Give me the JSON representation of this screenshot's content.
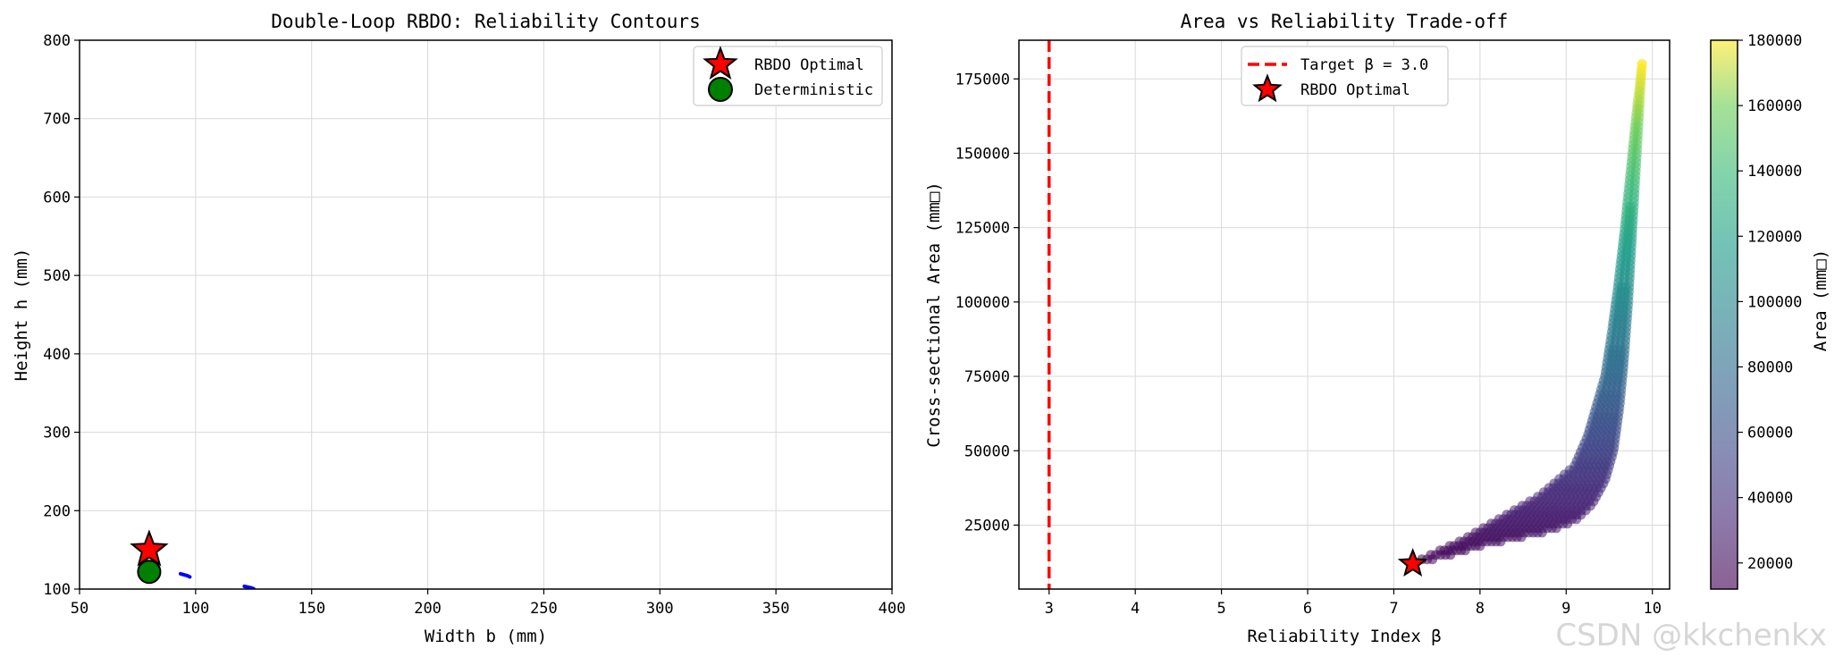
{
  "watermark": "CSDN @kkchenkx",
  "chart_data": [
    {
      "type": "scatter",
      "title": "Double-Loop RBDO: Reliability Contours",
      "xlabel": "Width b (mm)",
      "ylabel": "Height h (mm)",
      "xlim": [
        50,
        400
      ],
      "ylim": [
        100,
        800
      ],
      "xticks": [
        50,
        100,
        150,
        200,
        250,
        300,
        350,
        400
      ],
      "yticks": [
        100,
        200,
        300,
        400,
        500,
        600,
        700,
        800
      ],
      "grid": true,
      "legend_position": "upper right",
      "legend": [
        "RBDO Optimal",
        "Deterministic"
      ],
      "points": [
        {
          "name": "RBDO Optimal",
          "x": 80,
          "y": 150,
          "marker": "star",
          "color": "#ff0000"
        },
        {
          "name": "Deterministic",
          "x": 80,
          "y": 122,
          "marker": "circle",
          "color": "#008000"
        }
      ],
      "contour_fragments": [
        {
          "color": "#0000ff",
          "points": [
            [
              93.5,
              119.5
            ],
            [
              96.5,
              117
            ],
            [
              97.5,
              115.5
            ]
          ]
        },
        {
          "color": "#0000ff",
          "points": [
            [
              121,
              103.5
            ],
            [
              124,
              101.5
            ],
            [
              125,
              100.5
            ]
          ]
        }
      ]
    },
    {
      "type": "scatter",
      "title": "Area vs Reliability Trade-off",
      "xlabel": "Reliability Index β",
      "ylabel": "Cross-sectional Area (mm□)",
      "xlim": [
        2.65,
        10.2
      ],
      "ylim": [
        3500,
        188000
      ],
      "xticks": [
        3,
        4,
        5,
        6,
        7,
        8,
        9,
        10
      ],
      "yticks": [
        25000,
        50000,
        75000,
        100000,
        125000,
        150000,
        175000
      ],
      "grid": true,
      "legend_position": "upper center",
      "legend": [
        "Target β = 3.0",
        "RBDO Optimal"
      ],
      "target_beta": 3.0,
      "optimal": {
        "x": 7.22,
        "y": 12000
      },
      "colorbar": {
        "label": "Area (mm□)",
        "min": 12000,
        "max": 180000,
        "ticks": [
          20000,
          40000,
          60000,
          80000,
          100000,
          120000,
          140000,
          160000,
          180000
        ],
        "colormap": "viridis"
      },
      "scatter_region": {
        "lower_edge": [
          [
            7.22,
            12000
          ],
          [
            7.6,
            14500
          ],
          [
            8.0,
            18000
          ],
          [
            8.4,
            20500
          ],
          [
            8.8,
            23000
          ],
          [
            9.1,
            26500
          ],
          [
            9.3,
            32000
          ],
          [
            9.45,
            40000
          ],
          [
            9.55,
            50000
          ],
          [
            9.62,
            65000
          ],
          [
            9.67,
            80000
          ],
          [
            9.72,
            100000
          ],
          [
            9.76,
            120000
          ],
          [
            9.8,
            140000
          ],
          [
            9.84,
            160000
          ],
          [
            9.88,
            180000
          ]
        ],
        "upper_edge": [
          [
            7.22,
            12000
          ],
          [
            7.5,
            16000
          ],
          [
            7.8,
            20000
          ],
          [
            8.1,
            25000
          ],
          [
            8.4,
            30000
          ],
          [
            8.7,
            35000
          ],
          [
            8.9,
            40000
          ],
          [
            9.1,
            45000
          ],
          [
            9.25,
            55000
          ],
          [
            9.35,
            65000
          ],
          [
            9.45,
            75000
          ],
          [
            9.53,
            90000
          ],
          [
            9.6,
            105000
          ],
          [
            9.68,
            125000
          ],
          [
            9.75,
            145000
          ],
          [
            9.82,
            165000
          ],
          [
            9.88,
            180000
          ]
        ]
      }
    }
  ]
}
